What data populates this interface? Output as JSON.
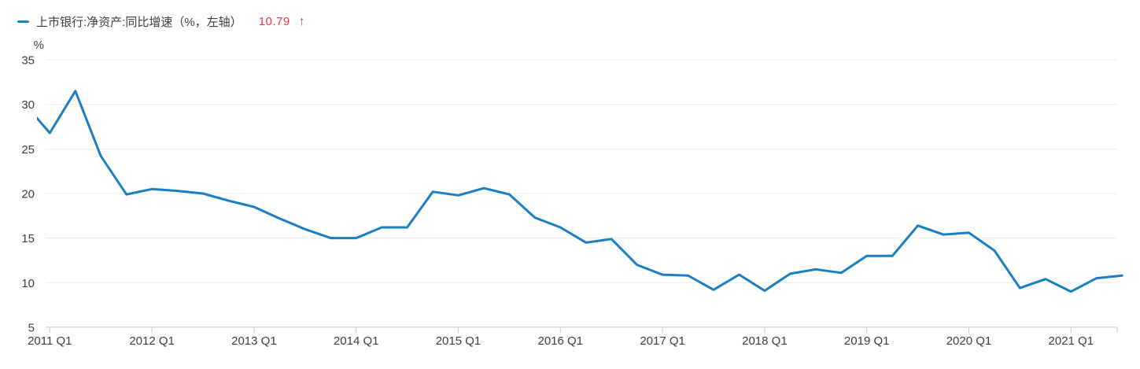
{
  "legend": {
    "series_label": "上市银行:净资产:同比增速（%，左轴）",
    "latest_value": "10.79",
    "arrow": "↑"
  },
  "colors": {
    "line": "#1b7ec2",
    "latest_value_text": "#e23b3b",
    "axis_text": "#3d3d3d",
    "gridline": "#ececec",
    "axis_line": "#c9c9c9",
    "background": "#ffffff"
  },
  "chart_data": {
    "type": "line",
    "title": "",
    "series_name": "上市银行:净资产:同比增速（%，左轴）",
    "unit_label": "%",
    "ylim": [
      5,
      35
    ],
    "y_ticks": [
      35,
      30,
      25,
      20,
      15,
      10,
      5
    ],
    "x_tick_labels": [
      "2011 Q1",
      "2012 Q1",
      "2013 Q1",
      "2014 Q1",
      "2015 Q1",
      "2016 Q1",
      "2017 Q1",
      "2018 Q1",
      "2019 Q1",
      "2020 Q1",
      "2021 Q1"
    ],
    "grid": "horizontal-only",
    "legend_position": "top-left",
    "lead_in": {
      "label": "2010 Q4",
      "value": 30.1,
      "note": "segment clipped at left edge of plot"
    },
    "categories": [
      "2011 Q1",
      "2011 Q2",
      "2011 Q3",
      "2011 Q4",
      "2012 Q1",
      "2012 Q2",
      "2012 Q3",
      "2012 Q4",
      "2013 Q1",
      "2013 Q2",
      "2013 Q3",
      "2013 Q4",
      "2014 Q1",
      "2014 Q2",
      "2014 Q3",
      "2014 Q4",
      "2015 Q1",
      "2015 Q2",
      "2015 Q3",
      "2015 Q4",
      "2016 Q1",
      "2016 Q2",
      "2016 Q3",
      "2016 Q4",
      "2017 Q1",
      "2017 Q2",
      "2017 Q3",
      "2017 Q4",
      "2018 Q1",
      "2018 Q2",
      "2018 Q3",
      "2018 Q4",
      "2019 Q1",
      "2019 Q2",
      "2019 Q3",
      "2019 Q4",
      "2020 Q1",
      "2020 Q2",
      "2020 Q3",
      "2020 Q4",
      "2021 Q1",
      "2021 Q2",
      "2021 Q3"
    ],
    "values": [
      26.8,
      31.5,
      24.2,
      19.9,
      20.5,
      20.3,
      20.0,
      19.2,
      18.5,
      17.2,
      16.0,
      15.0,
      15.0,
      16.2,
      16.2,
      20.2,
      19.8,
      20.6,
      19.9,
      17.3,
      16.2,
      14.5,
      14.9,
      12.0,
      10.9,
      10.8,
      9.2,
      10.9,
      9.1,
      11.0,
      11.5,
      11.1,
      13.0,
      13.0,
      16.4,
      15.4,
      15.6,
      13.6,
      9.4,
      10.4,
      9.0,
      10.5,
      10.79
    ],
    "latest_value": 10.79
  }
}
